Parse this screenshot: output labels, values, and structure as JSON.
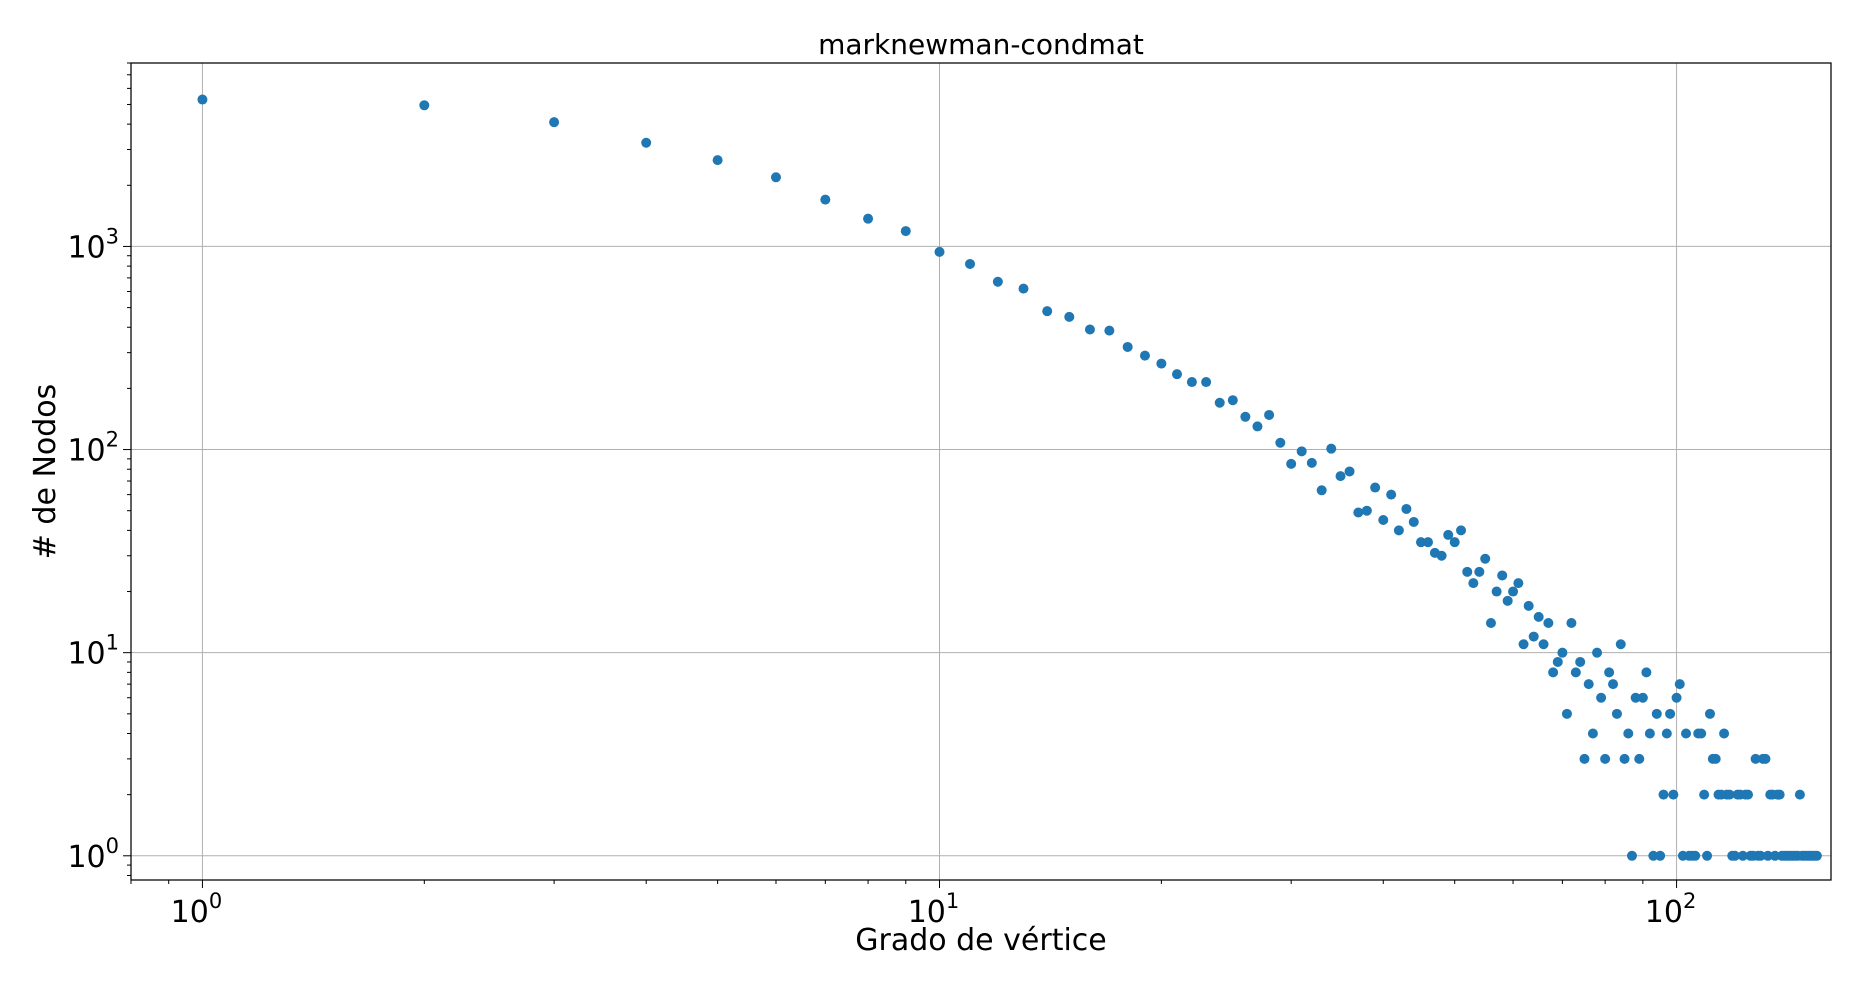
{
  "chart_data": {
    "type": "scatter",
    "title": "marknewman-condmat",
    "xlabel": "Grado de vértice",
    "ylabel": "# de Nodos",
    "x_scale": "log",
    "y_scale": "log",
    "xlim": [
      0.8,
      162
    ],
    "ylim": [
      0.76,
      8000
    ],
    "grid": true,
    "marker_color": "#1f77b4",
    "x_ticks": [
      {
        "base": "10",
        "exp": "0",
        "value": 1
      },
      {
        "base": "10",
        "exp": "1",
        "value": 10
      },
      {
        "base": "10",
        "exp": "2",
        "value": 100
      }
    ],
    "y_ticks": [
      {
        "base": "10",
        "exp": "0",
        "value": 1
      },
      {
        "base": "10",
        "exp": "1",
        "value": 10
      },
      {
        "base": "10",
        "exp": "2",
        "value": 100
      },
      {
        "base": "10",
        "exp": "3",
        "value": 1000
      }
    ],
    "points": [
      [
        1,
        5287
      ],
      [
        2,
        4954
      ],
      [
        3,
        4090
      ],
      [
        4,
        3240
      ],
      [
        5,
        2660
      ],
      [
        6,
        2190
      ],
      [
        7,
        1700
      ],
      [
        8,
        1370
      ],
      [
        9,
        1190
      ],
      [
        10,
        940
      ],
      [
        11,
        820
      ],
      [
        12,
        670
      ],
      [
        13,
        620
      ],
      [
        14,
        480
      ],
      [
        15,
        450
      ],
      [
        16,
        390
      ],
      [
        17,
        385
      ],
      [
        18,
        320
      ],
      [
        19,
        290
      ],
      [
        20,
        265
      ],
      [
        21,
        235
      ],
      [
        22,
        215
      ],
      [
        23,
        215
      ],
      [
        24,
        170
      ],
      [
        25,
        175
      ],
      [
        26,
        145
      ],
      [
        27,
        130
      ],
      [
        28,
        148
      ],
      [
        29,
        108
      ],
      [
        30,
        85
      ],
      [
        31,
        98
      ],
      [
        32,
        86
      ],
      [
        33,
        63
      ],
      [
        34,
        101
      ],
      [
        35,
        74
      ],
      [
        36,
        78
      ],
      [
        37,
        49
      ],
      [
        38,
        50
      ],
      [
        39,
        65
      ],
      [
        40,
        45
      ],
      [
        41,
        60
      ],
      [
        42,
        40
      ],
      [
        43,
        51
      ],
      [
        44,
        44
      ],
      [
        45,
        35
      ],
      [
        46,
        35
      ],
      [
        47,
        31
      ],
      [
        48,
        30
      ],
      [
        49,
        38
      ],
      [
        50,
        35
      ],
      [
        51,
        40
      ],
      [
        52,
        25
      ],
      [
        53,
        22
      ],
      [
        54,
        25
      ],
      [
        55,
        29
      ],
      [
        56,
        14
      ],
      [
        57,
        20
      ],
      [
        58,
        24
      ],
      [
        59,
        18
      ],
      [
        60,
        20
      ],
      [
        61,
        22
      ],
      [
        62,
        11
      ],
      [
        63,
        17
      ],
      [
        64,
        12
      ],
      [
        65,
        15
      ],
      [
        66,
        11
      ],
      [
        67,
        14
      ],
      [
        68,
        8
      ],
      [
        69,
        9
      ],
      [
        70,
        10
      ],
      [
        71,
        5
      ],
      [
        72,
        14
      ],
      [
        73,
        8
      ],
      [
        74,
        9
      ],
      [
        75,
        3
      ],
      [
        76,
        7
      ],
      [
        77,
        4
      ],
      [
        78,
        10
      ],
      [
        79,
        6
      ],
      [
        80,
        3
      ],
      [
        81,
        8
      ],
      [
        82,
        7
      ],
      [
        83,
        5
      ],
      [
        84,
        11
      ],
      [
        85,
        3
      ],
      [
        86,
        4
      ],
      [
        87,
        1
      ],
      [
        88,
        6
      ],
      [
        89,
        3
      ],
      [
        90,
        6
      ],
      [
        91,
        8
      ],
      [
        92,
        4
      ],
      [
        93,
        1
      ],
      [
        94,
        5
      ],
      [
        95,
        1
      ],
      [
        96,
        2
      ],
      [
        97,
        4
      ],
      [
        98,
        5
      ],
      [
        99,
        2
      ],
      [
        100,
        6
      ],
      [
        101,
        7
      ],
      [
        102,
        1
      ],
      [
        103,
        4
      ],
      [
        104,
        1
      ],
      [
        105,
        1
      ],
      [
        106,
        1
      ],
      [
        107,
        4
      ],
      [
        108,
        4
      ],
      [
        109,
        2
      ],
      [
        110,
        1
      ],
      [
        111,
        5
      ],
      [
        112,
        3
      ],
      [
        113,
        3
      ],
      [
        114,
        2
      ],
      [
        115,
        2
      ],
      [
        116,
        4
      ],
      [
        117,
        2
      ],
      [
        118,
        2
      ],
      [
        119,
        1
      ],
      [
        120,
        1
      ],
      [
        121,
        2
      ],
      [
        122,
        2
      ],
      [
        123,
        1
      ],
      [
        124,
        2
      ],
      [
        125,
        2
      ],
      [
        126,
        1
      ],
      [
        127,
        1
      ],
      [
        128,
        3
      ],
      [
        129,
        1
      ],
      [
        130,
        1
      ],
      [
        131,
        3
      ],
      [
        132,
        3
      ],
      [
        133,
        1
      ],
      [
        134,
        2
      ],
      [
        135,
        2
      ],
      [
        136,
        1
      ],
      [
        137,
        2
      ],
      [
        138,
        2
      ],
      [
        139,
        1
      ],
      [
        140,
        1
      ],
      [
        141,
        1
      ],
      [
        142,
        1
      ],
      [
        143,
        1
      ],
      [
        144,
        1
      ],
      [
        145,
        1
      ],
      [
        146,
        1
      ],
      [
        147,
        2
      ],
      [
        148,
        1
      ],
      [
        149,
        1
      ],
      [
        150,
        1
      ],
      [
        151,
        1
      ],
      [
        152,
        1
      ],
      [
        153,
        1
      ],
      [
        154,
        1
      ],
      [
        155,
        1
      ]
    ]
  }
}
